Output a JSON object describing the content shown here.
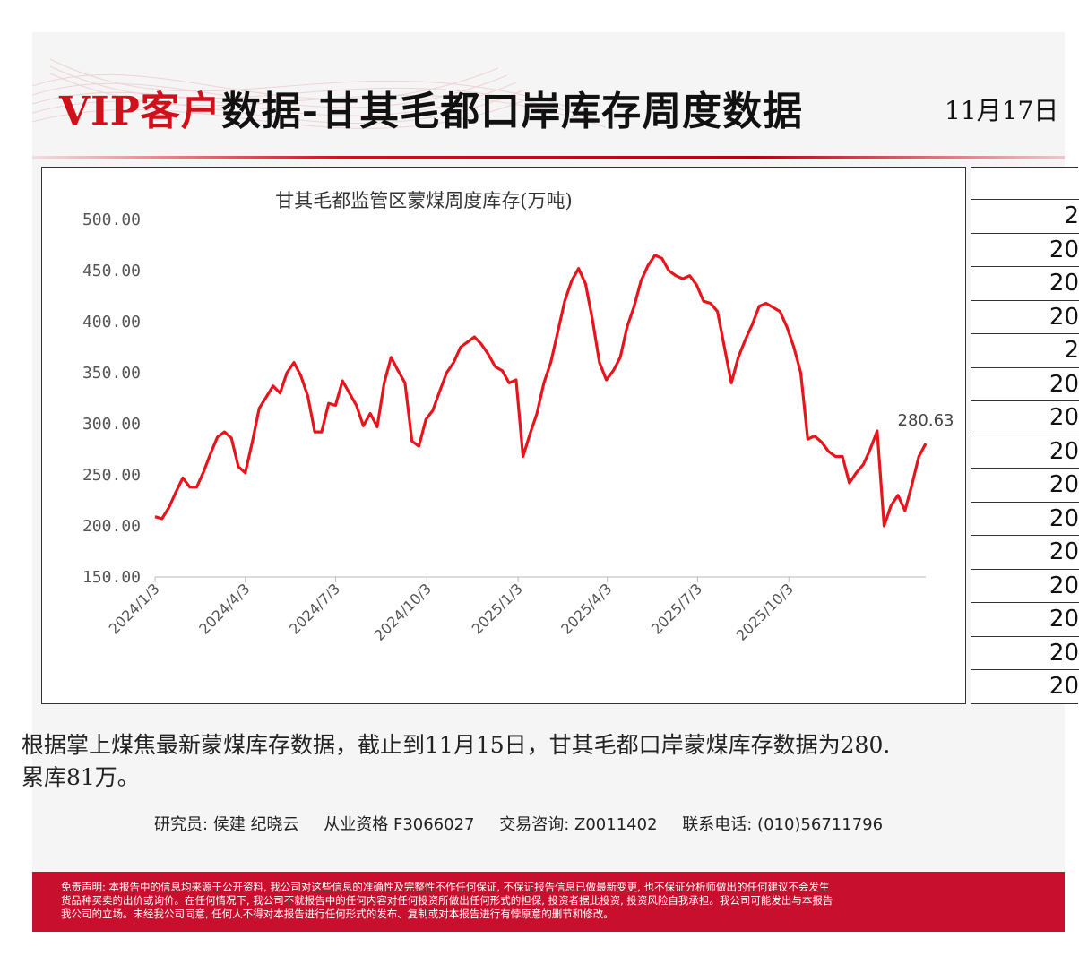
{
  "header": {
    "title_vip": "VIP客户",
    "title_rest": "数据-甘其毛都口岸库存周度数据",
    "date": "11月17日"
  },
  "chart_data": {
    "type": "line",
    "title": "甘其毛都监管区蒙煤周度库存(万吨)",
    "ylim": [
      150,
      500
    ],
    "y_ticks": [
      "150.00",
      "200.00",
      "250.00",
      "300.00",
      "350.00",
      "400.00",
      "450.00",
      "500.00"
    ],
    "x_ticks": [
      "2024/1/3",
      "2024/4/3",
      "2024/7/3",
      "2024/10/3",
      "2025/1/3",
      "2025/4/3",
      "2025/7/3",
      "2025/10/3"
    ],
    "x_tick_dates": [
      "2024-01-03",
      "2024-04-03",
      "2024-07-03",
      "2024-10-03",
      "2025-01-03",
      "2025-04-03",
      "2025-07-03",
      "2025-10-03"
    ],
    "grid": false,
    "line_color": "#e8141c",
    "end_label": "280.63",
    "series": [
      {
        "points": [
          [
            "2024-01-03",
            209
          ],
          [
            "2024-01-10",
            207
          ],
          [
            "2024-01-17",
            218
          ],
          [
            "2024-01-24",
            233
          ],
          [
            "2024-01-31",
            247
          ],
          [
            "2024-02-07",
            238
          ],
          [
            "2024-02-14",
            238
          ],
          [
            "2024-02-21",
            253
          ],
          [
            "2024-02-28",
            271
          ],
          [
            "2024-03-06",
            287
          ],
          [
            "2024-03-13",
            292
          ],
          [
            "2024-03-20",
            286
          ],
          [
            "2024-03-27",
            258
          ],
          [
            "2024-04-03",
            252
          ],
          [
            "2024-04-10",
            282
          ],
          [
            "2024-04-17",
            315
          ],
          [
            "2024-04-24",
            326
          ],
          [
            "2024-05-01",
            337
          ],
          [
            "2024-05-08",
            330
          ],
          [
            "2024-05-15",
            350
          ],
          [
            "2024-05-22",
            360
          ],
          [
            "2024-05-29",
            347
          ],
          [
            "2024-06-05",
            327
          ],
          [
            "2024-06-12",
            292
          ],
          [
            "2024-06-19",
            292
          ],
          [
            "2024-06-26",
            320
          ],
          [
            "2024-07-03",
            318
          ],
          [
            "2024-07-10",
            342
          ],
          [
            "2024-07-17",
            330
          ],
          [
            "2024-07-24",
            318
          ],
          [
            "2024-07-31",
            298
          ],
          [
            "2024-08-07",
            310
          ],
          [
            "2024-08-14",
            297
          ],
          [
            "2024-08-21",
            340
          ],
          [
            "2024-08-28",
            365
          ],
          [
            "2024-09-04",
            352
          ],
          [
            "2024-09-11",
            340
          ],
          [
            "2024-09-18",
            283
          ],
          [
            "2024-09-25",
            278
          ],
          [
            "2024-10-02",
            304
          ],
          [
            "2024-10-09",
            313
          ],
          [
            "2024-10-16",
            332
          ],
          [
            "2024-10-23",
            350
          ],
          [
            "2024-10-30",
            360
          ],
          [
            "2024-11-06",
            375
          ],
          [
            "2024-11-13",
            380
          ],
          [
            "2024-11-20",
            385
          ],
          [
            "2024-11-27",
            378
          ],
          [
            "2024-12-04",
            368
          ],
          [
            "2024-12-11",
            356
          ],
          [
            "2024-12-18",
            352
          ],
          [
            "2024-12-25",
            340
          ],
          [
            "2025-01-01",
            343
          ],
          [
            "2025-01-08",
            268
          ],
          [
            "2025-01-15",
            290
          ],
          [
            "2025-01-22",
            310
          ],
          [
            "2025-01-29",
            340
          ],
          [
            "2025-02-05",
            360
          ],
          [
            "2025-02-12",
            390
          ],
          [
            "2025-02-19",
            420
          ],
          [
            "2025-02-26",
            440
          ],
          [
            "2025-03-05",
            452
          ],
          [
            "2025-03-12",
            437
          ],
          [
            "2025-03-19",
            402
          ],
          [
            "2025-03-26",
            360
          ],
          [
            "2025-04-02",
            343
          ],
          [
            "2025-04-09",
            352
          ],
          [
            "2025-04-16",
            365
          ],
          [
            "2025-04-23",
            395
          ],
          [
            "2025-04-30",
            415
          ],
          [
            "2025-05-07",
            440
          ],
          [
            "2025-05-14",
            455
          ],
          [
            "2025-05-21",
            465
          ],
          [
            "2025-05-28",
            462
          ],
          [
            "2025-06-04",
            450
          ],
          [
            "2025-06-11",
            445
          ],
          [
            "2025-06-18",
            442
          ],
          [
            "2025-06-25",
            445
          ],
          [
            "2025-07-02",
            436
          ],
          [
            "2025-07-09",
            420
          ],
          [
            "2025-07-16",
            418
          ],
          [
            "2025-07-23",
            410
          ],
          [
            "2025-07-30",
            375
          ],
          [
            "2025-08-06",
            340
          ],
          [
            "2025-08-13",
            365
          ],
          [
            "2025-08-20",
            382
          ],
          [
            "2025-08-27",
            397
          ],
          [
            "2025-09-03",
            415
          ],
          [
            "2025-09-10",
            418
          ],
          [
            "2025-09-17",
            414
          ],
          [
            "2025-09-24",
            410
          ],
          [
            "2025-10-01",
            395
          ],
          [
            "2025-10-08",
            375
          ],
          [
            "2025-10-15",
            350
          ],
          [
            "2025-10-22",
            285
          ],
          [
            "2025-10-29",
            288
          ],
          [
            "2025-11-05",
            282
          ],
          [
            "2025-11-12",
            273
          ],
          [
            "2025-11-19",
            268
          ],
          [
            "2025-11-26",
            268
          ],
          [
            "2025-12-03",
            242
          ],
          [
            "2025-12-10",
            252
          ],
          [
            "2025-12-17",
            260
          ],
          [
            "2025-12-24",
            275
          ],
          [
            "2025-12-31",
            293
          ],
          [
            "2026-01-07",
            200
          ],
          [
            "2026-01-14",
            220
          ],
          [
            "2026-01-21",
            230
          ],
          [
            "2026-01-28",
            215
          ],
          [
            "2026-02-04",
            240
          ],
          [
            "2026-02-11",
            268
          ],
          [
            "2026-02-18",
            280.63
          ]
        ]
      }
    ]
  },
  "side_table": {
    "rows": [
      "2",
      "20",
      "20",
      "20",
      "2",
      "20",
      "20",
      "20",
      "20",
      "20",
      "20",
      "20",
      "20",
      "20",
      "20"
    ]
  },
  "summary": {
    "line1": "根据掌上煤焦最新蒙煤库存数据，截止到11月15日，甘其毛都口岸蒙煤库存数据为280.",
    "line2": "累库81万。"
  },
  "contact": {
    "researcher": "研究员: 侯建 纪晓云",
    "license": "从业资格 F3066027",
    "consult": "交易咨询: Z0011402",
    "phone": "联系电话: (010)56711796"
  },
  "disclaimer": {
    "line1": "免责声明: 本报告中的信息均来源于公开资料, 我公司对这些信息的准确性及完整性不作任何保证, 不保证报告信息已做最新变更, 也不保证分析师做出的任何建议不会发生",
    "line2": "货品种买卖的出价或询价。在任何情况下, 我公司不就报告中的任何内容对任何投资所做出任何形式的担保, 投资者据此投资, 投资风险自我承担。我公司可能发出与本报告",
    "line3": "我公司的立场。未经我公司同意, 任何人不得对本报告进行任何形式的发布、复制或对本报告进行有悖原意的删节和修改。"
  }
}
